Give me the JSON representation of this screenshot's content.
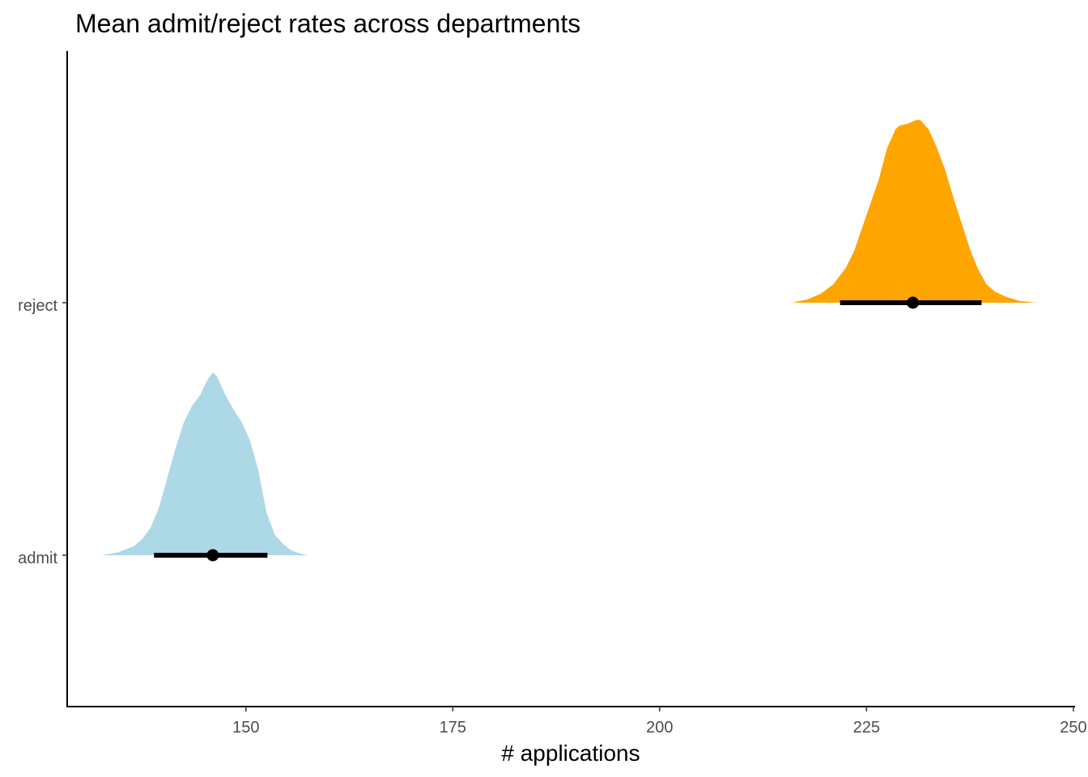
{
  "chart_data": {
    "type": "area",
    "title": "Mean admit/reject rates across departments",
    "xlabel": "# applications",
    "ylabel": "",
    "xlim": [
      128.4,
      250.2
    ],
    "x_ticks": [
      150,
      175,
      200,
      225,
      250
    ],
    "categories": [
      "admit",
      "reject"
    ],
    "grid": false,
    "legend": "none",
    "series": [
      {
        "category": "admit",
        "color": "#ADD8E6",
        "mean": 146.0,
        "interval": [
          138.9,
          152.6
        ],
        "density_x": [
          132.5,
          134.5,
          136.5,
          137.5,
          138.5,
          139.5,
          140.5,
          141.5,
          142.5,
          143.5,
          144.0,
          144.5,
          145.0,
          145.5,
          146.0,
          146.5,
          147.0,
          147.5,
          148.5,
          149.5,
          150.5,
          151.5,
          152.5,
          153.5,
          154.5,
          155.5,
          156.5,
          157.5
        ],
        "density_y": [
          0.0,
          0.015,
          0.05,
          0.09,
          0.15,
          0.26,
          0.42,
          0.58,
          0.72,
          0.81,
          0.84,
          0.87,
          0.92,
          0.96,
          0.99,
          0.97,
          0.92,
          0.87,
          0.79,
          0.72,
          0.62,
          0.46,
          0.23,
          0.11,
          0.06,
          0.025,
          0.01,
          0.0
        ]
      },
      {
        "category": "reject",
        "color": "#FFA500",
        "mean": 230.6,
        "interval": [
          221.8,
          238.9
        ],
        "density_x": [
          216.0,
          218.0,
          219.5,
          221.0,
          222.5,
          223.5,
          224.5,
          225.5,
          226.5,
          227.5,
          228.5,
          229.0,
          230.0,
          231.0,
          231.5,
          232.5,
          233.5,
          234.5,
          235.5,
          236.5,
          237.5,
          238.5,
          239.5,
          240.5,
          242.0,
          243.5,
          245.5
        ],
        "density_y": [
          0.0,
          0.02,
          0.05,
          0.1,
          0.19,
          0.28,
          0.41,
          0.54,
          0.67,
          0.84,
          0.94,
          0.96,
          0.97,
          0.99,
          0.99,
          0.94,
          0.84,
          0.72,
          0.57,
          0.43,
          0.29,
          0.18,
          0.1,
          0.06,
          0.03,
          0.01,
          0.0
        ]
      }
    ]
  }
}
